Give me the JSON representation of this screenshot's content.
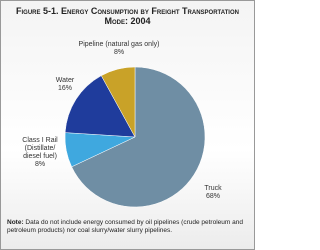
{
  "chart_data": {
    "type": "pie",
    "title": "Figure 5-1. Energy Consumption by Freight Transportation Mode: 2004",
    "categories": [
      "Truck",
      "Class I Rail (Distillate/ diesel fuel)",
      "Water",
      "Pipeline (natural gas only)"
    ],
    "values": [
      68,
      8,
      16,
      8
    ],
    "value_labels": [
      "68%",
      "8%",
      "16%",
      "8%"
    ],
    "colors": [
      "#6f8ea4",
      "#3fa8df",
      "#1f3c9c",
      "#c9a228"
    ],
    "note_label": "Note:",
    "note": "Data do not include energy consumed by oil pipelines (crude petroleum and petroleum products) nor coal slurry/water slurry pipelines."
  }
}
